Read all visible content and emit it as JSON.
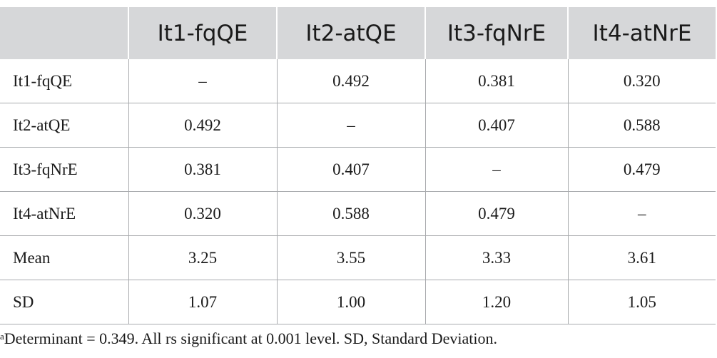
{
  "table": {
    "headers": [
      "",
      "It1-fqQE",
      "It2-atQE",
      "It3-fqNrE",
      "It4-atNrE"
    ],
    "rows": [
      [
        "It1-fqQE",
        "–",
        "0.492",
        "0.381",
        "0.320"
      ],
      [
        "It2-atQE",
        "0.492",
        "–",
        "0.407",
        "0.588"
      ],
      [
        "It3-fqNrE",
        "0.381",
        "0.407",
        "–",
        "0.479"
      ],
      [
        "It4-atNrE",
        "0.320",
        "0.588",
        "0.479",
        "–"
      ],
      [
        "Mean",
        "3.25",
        "3.55",
        "3.33",
        "3.61"
      ],
      [
        "SD",
        "1.07",
        "1.00",
        "1.20",
        "1.05"
      ]
    ]
  },
  "footnote": {
    "marker": "a",
    "text": "Determinant = 0.349. All rs significant at 0.001 level. SD, Standard Deviation."
  }
}
